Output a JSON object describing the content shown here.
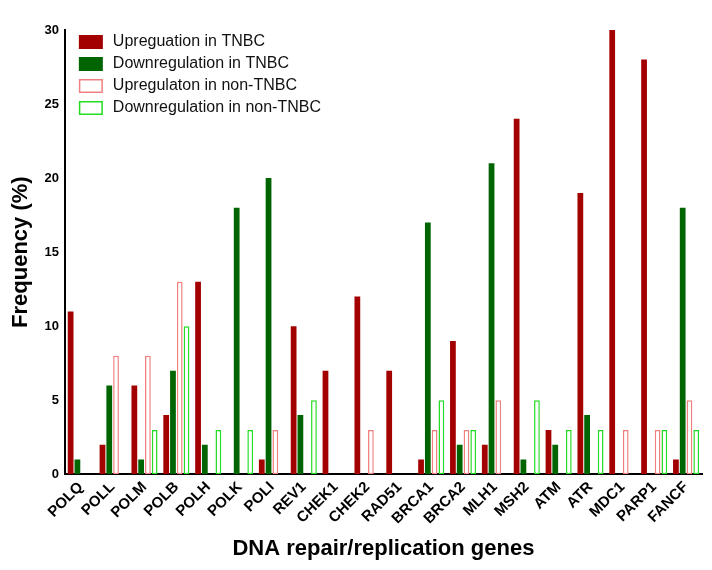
{
  "chart_data": {
    "type": "bar",
    "x_label": "DNA repair/replication genes",
    "y_label": "Frequency (%)",
    "categories": [
      "POLQ",
      "POLL",
      "POLM",
      "POLB",
      "POLH",
      "POLK",
      "POLI",
      "REV1",
      "CHEK1",
      "CHEK2",
      "RAD51",
      "BRCA1",
      "BRCA2",
      "MLH1",
      "MSH2",
      "ATM",
      "ATR",
      "MDC1",
      "PARP1",
      "FANCF"
    ],
    "series": [
      {
        "name": "Upreguation in TNBC",
        "color": "#a30000",
        "marker": "filled",
        "values": [
          11,
          2,
          6,
          4,
          13,
          0,
          1,
          10,
          7,
          12,
          7,
          1,
          9,
          2,
          24,
          3,
          19,
          30,
          28,
          1
        ]
      },
      {
        "name": "Downregulation in TNBC",
        "color": "#006400",
        "marker": "filled",
        "values": [
          1,
          6,
          1,
          7,
          2,
          18,
          20,
          4,
          0,
          0,
          0,
          17,
          2,
          21,
          1,
          2,
          4,
          0,
          0,
          18
        ]
      },
      {
        "name": "Upregulaton in non-TNBC",
        "color": "#f08080",
        "marker": "outline",
        "values": [
          0,
          8,
          8,
          13,
          0,
          0,
          3,
          0,
          0,
          3,
          0,
          3,
          3,
          5,
          0,
          0,
          0,
          3,
          3,
          5
        ]
      },
      {
        "name": "Downregulation in non-TNBC",
        "color": "#22dd22",
        "marker": "outline",
        "values": [
          0,
          0,
          3,
          10,
          3,
          3,
          0,
          5,
          0,
          0,
          0,
          5,
          3,
          0,
          5,
          3,
          3,
          0,
          3,
          3
        ]
      }
    ],
    "ylim": [
      0,
      30
    ],
    "yticks": [
      0,
      5,
      10,
      15,
      20,
      25,
      30
    ],
    "grid": false,
    "legend": "upper left"
  }
}
